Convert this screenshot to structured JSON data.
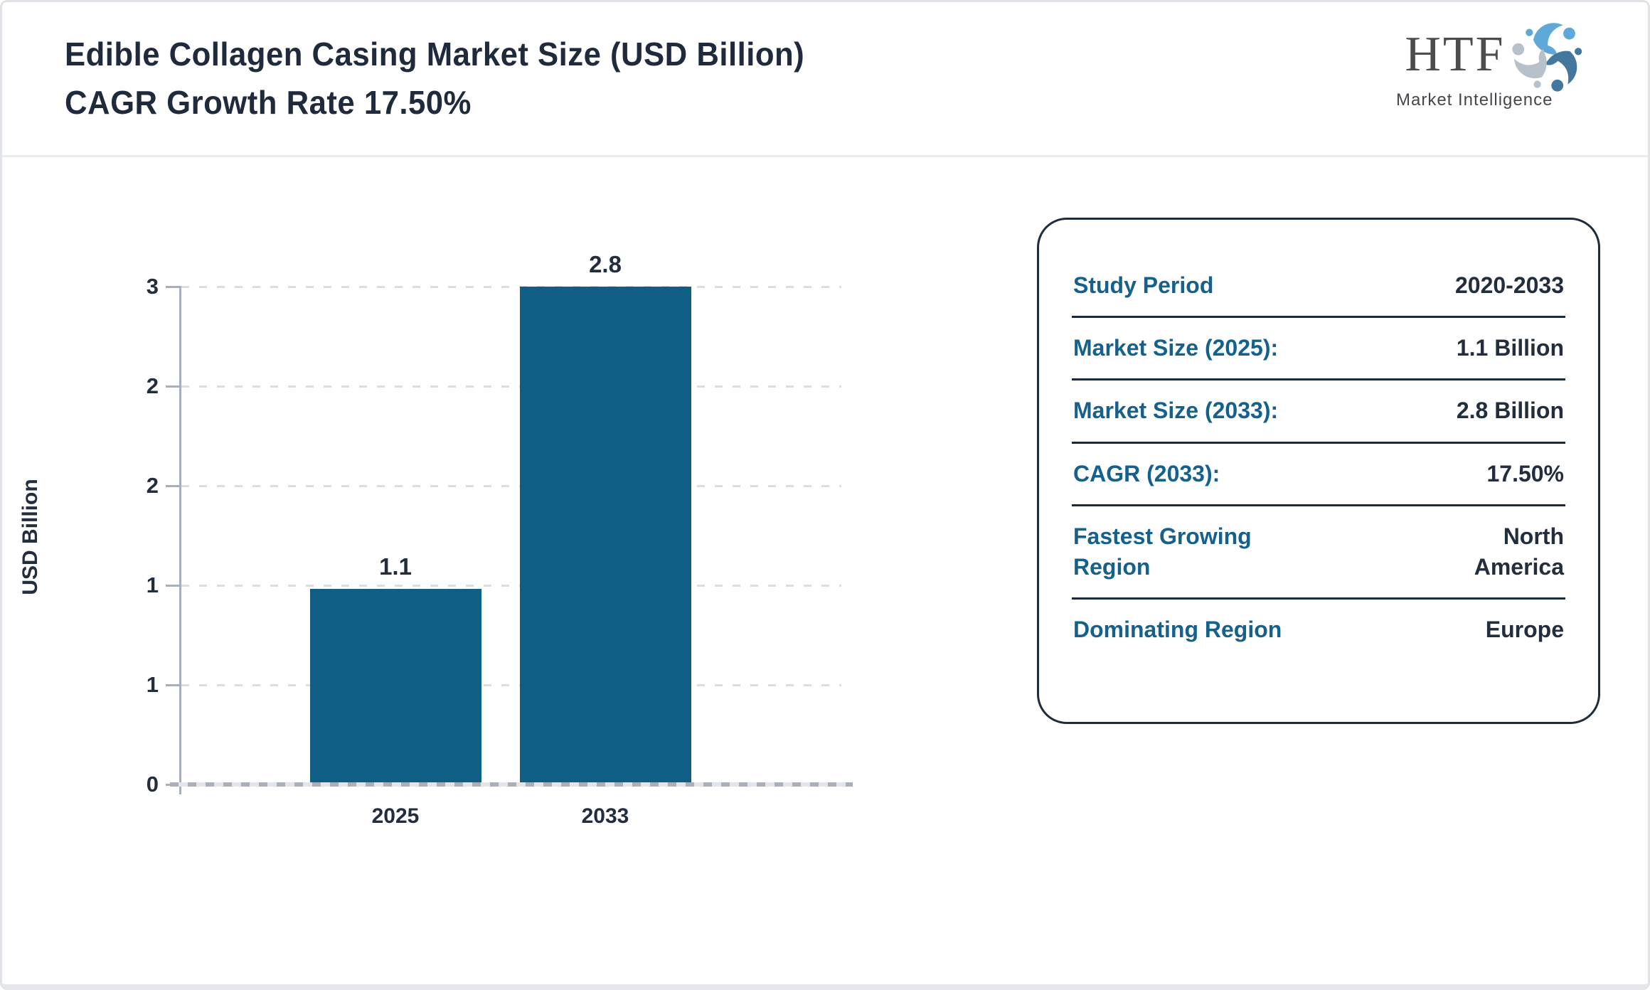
{
  "page": {
    "title": "Edible Collagen Casing Market Size (USD Billion) CAGR Growth Rate 17.50%"
  },
  "logo": {
    "brand": "HTF",
    "tagline": "Market Intelligence",
    "icon": "triskelion-people-icon"
  },
  "chart_data": {
    "type": "bar",
    "title": "Edible Collagen Casing Market Size (USD Billion) CAGR Growth Rate 17.50%",
    "categories": [
      "2025",
      "2033"
    ],
    "values": [
      1.1,
      2.8
    ],
    "value_labels": [
      "1.1",
      "2.8"
    ],
    "xlabel": "",
    "ylabel": "USD Billion",
    "ylim": [
      0,
      2.8
    ],
    "y_tick_labels_top_to_bottom": [
      "3",
      "2",
      "2",
      "1",
      "1",
      "0"
    ],
    "grid": "horizontal-dashed",
    "legend": "none",
    "bar_color": "#0f5e85"
  },
  "summary_panel": {
    "rows": [
      {
        "label": "Study Period",
        "value": "2020-2033"
      },
      {
        "label": "Market Size (2025):",
        "value": "1.1 Billion"
      },
      {
        "label": "Market Size (2033):",
        "value": "2.8 Billion"
      },
      {
        "label": "CAGR (2033):",
        "value": "17.50%"
      },
      {
        "label": "Fastest Growing Region",
        "value": "North America"
      },
      {
        "label": "Dominating Region",
        "value": "Europe"
      }
    ]
  },
  "colors": {
    "accent_teal": "#15618c",
    "bar": "#0f5e85",
    "dark_text": "#222d3d",
    "axis_gray": "#a9afb8"
  }
}
